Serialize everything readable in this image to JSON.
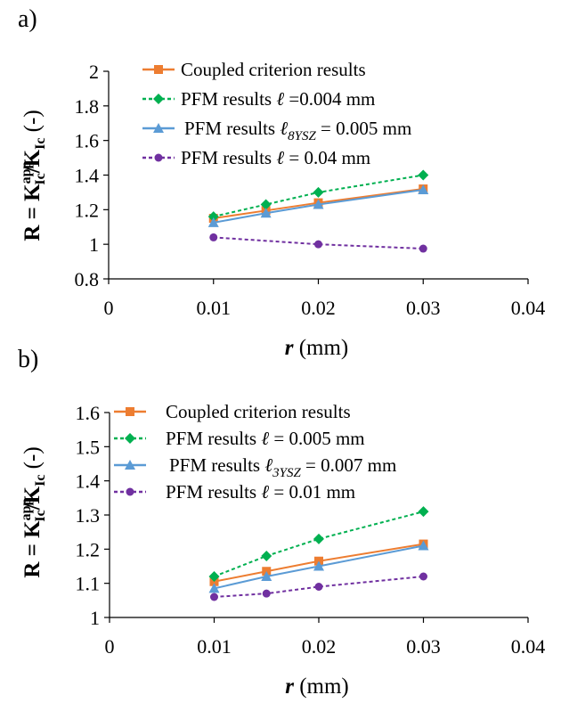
{
  "chart_data": [
    {
      "type": "line",
      "panel_label": "a)",
      "xlabel_var": "r",
      "xlabel_unit": " (mm)",
      "ylabel": {
        "main": "R = K",
        "sup1": "app",
        "sub1": "Ic",
        "mid": "/K",
        "sub2": "Ic",
        "unit": " (-)"
      },
      "xlim": [
        0,
        0.04
      ],
      "ylim": [
        0.8,
        2
      ],
      "x_ticks": [
        0,
        0.01,
        0.02,
        0.03,
        0.04
      ],
      "x_tick_labels": [
        "0",
        "0.01",
        "0.02",
        "0.03",
        "0.04"
      ],
      "y_ticks": [
        0.8,
        1,
        1.2,
        1.4,
        1.6,
        1.8,
        2
      ],
      "y_tick_labels": [
        "0.8",
        "1",
        "1.2",
        "1.4",
        "1.6",
        "1.8",
        "2"
      ],
      "legend_position": "top",
      "grid": false,
      "series": [
        {
          "name": "Coupled criterion results",
          "color": "#ED7D31",
          "marker": "square",
          "dashed": false,
          "legend_parts": [
            {
              "t": "Coupled criterion results"
            }
          ],
          "x": [
            0.01,
            0.015,
            0.02,
            0.03
          ],
          "y": [
            1.15,
            1.195,
            1.24,
            1.32
          ]
        },
        {
          "name": "PFM results ℓ =0.004 mm",
          "color": "#00B050",
          "marker": "diamond",
          "dashed": true,
          "legend_parts": [
            {
              "t": "PFM results "
            },
            {
              "t": "ℓ",
              "i": true
            },
            {
              "t": " =0.004 mm"
            }
          ],
          "x": [
            0.01,
            0.015,
            0.02,
            0.03
          ],
          "y": [
            1.16,
            1.23,
            1.3,
            1.4
          ]
        },
        {
          "name": "PFM results ℓ8YSZ = 0.005 mm",
          "color": "#5B9BD5",
          "marker": "triangle",
          "dashed": false,
          "legend_parts": [
            {
              "t": "PFM results "
            },
            {
              "t": "ℓ",
              "i": true
            },
            {
              "t": "8YSZ",
              "i": true,
              "sub": true
            },
            {
              "t": " = 0.005 mm"
            }
          ],
          "x": [
            0.01,
            0.015,
            0.02,
            0.03
          ],
          "y": [
            1.125,
            1.18,
            1.23,
            1.315
          ]
        },
        {
          "name": "PFM results ℓ = 0.04 mm",
          "color": "#7030A0",
          "marker": "circle",
          "dashed": true,
          "legend_parts": [
            {
              "t": "PFM results "
            },
            {
              "t": "ℓ",
              "i": true
            },
            {
              "t": " = 0.04 mm"
            }
          ],
          "x": [
            0.01,
            0.02,
            0.03
          ],
          "y": [
            1.04,
            1.0,
            0.975
          ]
        }
      ]
    },
    {
      "type": "line",
      "panel_label": "b)",
      "xlabel_var": "r",
      "xlabel_unit": " (mm)",
      "ylabel": {
        "main": "R = K",
        "sup1": "app",
        "sub1": "Ic",
        "mid": "/K",
        "sub2": "Ic",
        "unit": " (-)"
      },
      "xlim": [
        0,
        0.04
      ],
      "ylim": [
        1,
        1.6
      ],
      "x_ticks": [
        0,
        0.01,
        0.02,
        0.03,
        0.04
      ],
      "x_tick_labels": [
        "0",
        "0.01",
        "0.02",
        "0.03",
        "0.04"
      ],
      "y_ticks": [
        1,
        1.1,
        1.2,
        1.3,
        1.4,
        1.5,
        1.6
      ],
      "y_tick_labels": [
        "1",
        "1.1",
        "1.2",
        "1.3",
        "1.4",
        "1.5",
        "1.6"
      ],
      "legend_position": "top",
      "grid": false,
      "series": [
        {
          "name": "Coupled criterion results",
          "color": "#ED7D31",
          "marker": "square",
          "dashed": false,
          "legend_parts": [
            {
              "t": "Coupled criterion results"
            }
          ],
          "x": [
            0.01,
            0.015,
            0.02,
            0.03
          ],
          "y": [
            1.105,
            1.135,
            1.165,
            1.215
          ]
        },
        {
          "name": "PFM results ℓ = 0.005 mm",
          "color": "#00B050",
          "marker": "diamond",
          "dashed": true,
          "legend_parts": [
            {
              "t": "PFM results "
            },
            {
              "t": "ℓ",
              "i": true
            },
            {
              "t": " = 0.005 mm"
            }
          ],
          "x": [
            0.01,
            0.015,
            0.02,
            0.03
          ],
          "y": [
            1.12,
            1.18,
            1.23,
            1.31
          ]
        },
        {
          "name": "PFM results ℓ3YSZ = 0.007 mm",
          "color": "#5B9BD5",
          "marker": "triangle",
          "dashed": false,
          "legend_parts": [
            {
              "t": "PFM results "
            },
            {
              "t": "ℓ",
              "i": true
            },
            {
              "t": "3YSZ",
              "i": true,
              "sub": true
            },
            {
              "t": " = 0.007 mm"
            }
          ],
          "x": [
            0.01,
            0.015,
            0.02,
            0.03
          ],
          "y": [
            1.085,
            1.12,
            1.15,
            1.21
          ]
        },
        {
          "name": "PFM results ℓ = 0.01 mm",
          "color": "#7030A0",
          "marker": "circle",
          "dashed": true,
          "legend_parts": [
            {
              "t": "PFM results "
            },
            {
              "t": "ℓ",
              "i": true
            },
            {
              "t": " = 0.01 mm"
            }
          ],
          "x": [
            0.01,
            0.015,
            0.02,
            0.03
          ],
          "y": [
            1.06,
            1.07,
            1.09,
            1.12
          ]
        }
      ]
    }
  ]
}
